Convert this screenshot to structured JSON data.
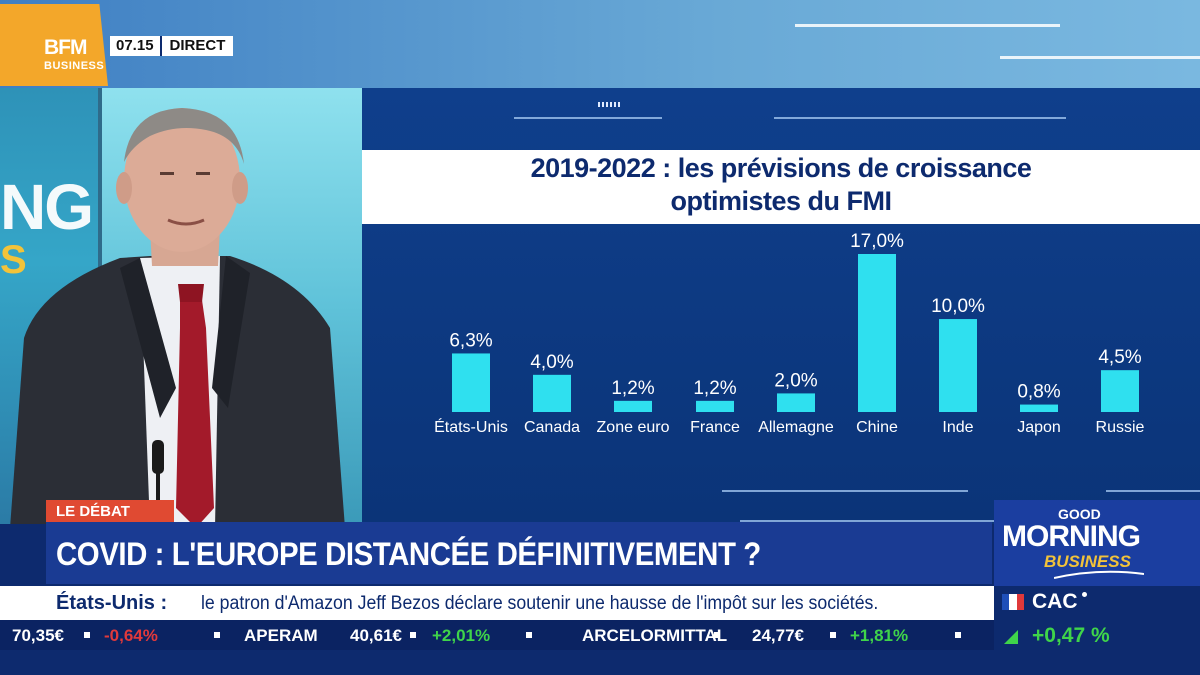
{
  "channel": {
    "logo_line1": "BFM",
    "logo_line2": "BUSINESS",
    "time": "07.15",
    "live": "DIRECT"
  },
  "studio_backdrop": {
    "text_line1": "NG",
    "text_line2": "S"
  },
  "chart_panel": {
    "title_line1": "2019-2022 : les prévisions de croissance",
    "title_line2": "optimistes du FMI"
  },
  "chart_data": {
    "type": "bar",
    "title": "2019-2022 : les prévisions de croissance optimistes du FMI",
    "categories": [
      "États-Unis",
      "Canada",
      "Zone euro",
      "France",
      "Allemagne",
      "Chine",
      "Inde",
      "Japon",
      "Russie"
    ],
    "values": [
      6.3,
      4.0,
      1.2,
      1.2,
      2.0,
      17.0,
      10.0,
      0.8,
      4.5
    ],
    "value_labels": [
      "6,3%",
      "4,0%",
      "1,2%",
      "1,2%",
      "2,0%",
      "17,0%",
      "10,0%",
      "0,8%",
      "4,5%"
    ],
    "unit": "%",
    "ylim": [
      0,
      17
    ],
    "grid": false,
    "colors": {
      "bar": "#2fe0ef",
      "label": "#ffffff",
      "background": "#0f3f8c"
    }
  },
  "lower_third": {
    "tag": "LE DÉBAT",
    "headline": "COVID : L'EUROPE DISTANCÉE DÉFINITIVEMENT ?"
  },
  "news_ticker": {
    "source": "États-Unis :",
    "message": "le patron d'Amazon Jeff Bezos déclare soutenir une hausse de l'impôt sur les sociétés."
  },
  "stock_ticker": [
    {
      "text": "70,35€",
      "color": "#ffffff"
    },
    {
      "text": "-0,64%",
      "color": "#e0393b"
    },
    {
      "text": "APERAM",
      "color": "#ffffff"
    },
    {
      "text": "40,61€",
      "color": "#ffffff"
    },
    {
      "text": "+2,01%",
      "color": "#3fd44a"
    },
    {
      "text": "ARCELORMITTAL",
      "color": "#ffffff"
    },
    {
      "text": "24,77€",
      "color": "#ffffff"
    },
    {
      "text": "+1,81%",
      "color": "#3fd44a"
    }
  ],
  "show_brand": {
    "good": "GOOD",
    "morning": "MORNING",
    "business": "BUSINESS"
  },
  "index": {
    "name": "CAC",
    "change": "+0,47 %",
    "change_color": "#3fd44a"
  }
}
